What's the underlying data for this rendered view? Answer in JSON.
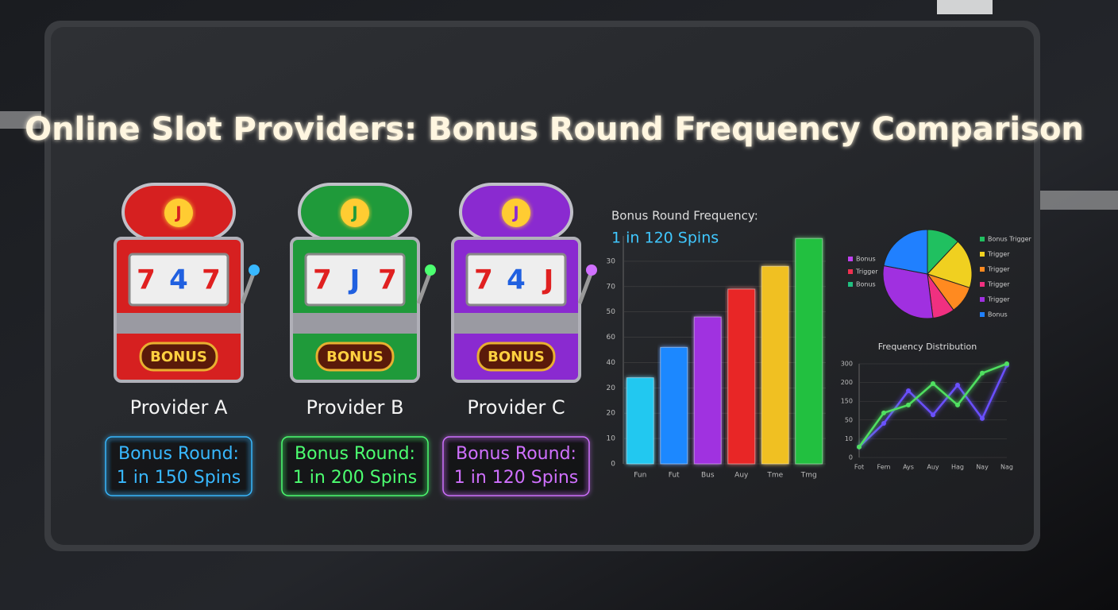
{
  "title": "Online Slot Providers: Bonus Round Frequency Comparison",
  "providers": [
    {
      "name": "Provider A",
      "color": "#d62020",
      "accent": "#38b8ff",
      "jackpot": "J",
      "reels": [
        "7",
        "4",
        "7"
      ],
      "badge": "BONUS",
      "bonus_line1": "Bonus Round:",
      "bonus_line2": "1 in 150 Spins"
    },
    {
      "name": "Provider B",
      "color": "#1f9a3a",
      "accent": "#4cff70",
      "jackpot": "J",
      "reels": [
        "7",
        "J",
        "7"
      ],
      "badge": "BONUS",
      "bonus_line1": "Bonus Round:",
      "bonus_line2": "1 in 200 Spins"
    },
    {
      "name": "Provider C",
      "color": "#8a2ad0",
      "accent": "#d070ff",
      "jackpot": "J",
      "reels": [
        "7",
        "4",
        "J"
      ],
      "badge": "BONUS",
      "bonus_line1": "Bonus Round:",
      "bonus_line2": "1 in 120 Spins"
    }
  ],
  "chart_data": [
    {
      "type": "bar",
      "title": "Bonus Round Frequency:",
      "subtitle": "1 in 120 Spins",
      "categories": [
        "Fun",
        "Fut",
        "Bus",
        "Auy",
        "Tme",
        "Tmg"
      ],
      "values": [
        34,
        46,
        58,
        69,
        78,
        89
      ],
      "colors": [
        "#22c8f0",
        "#1e88ff",
        "#a030e0",
        "#e82828",
        "#f0c020",
        "#20c040"
      ],
      "ylim": [
        0,
        90
      ],
      "yticks": [
        0,
        10,
        {
          "value": 20,
          "label": "20"
        },
        {
          "value": 30,
          "label": "20"
        },
        40,
        {
          "value": 50,
          "label": "60"
        },
        {
          "value": 60,
          "label": "50"
        },
        70,
        {
          "value": 80,
          "label": "30"
        }
      ]
    },
    {
      "type": "pie",
      "categories": [
        "Bonus Trigger",
        "Trigger",
        "Trigger",
        "Trigger",
        "Trigger",
        "Bonus"
      ],
      "values": [
        12,
        18,
        10,
        8,
        30,
        22
      ],
      "colors": [
        "#20c060",
        "#f0d020",
        "#ff8a20",
        "#f03080",
        "#a030e0",
        "#2080ff"
      ],
      "annotations": [
        {
          "text": "Bonus",
          "color": "#c040f0"
        },
        {
          "text": "Trigger",
          "color": "#f03050"
        },
        {
          "text": "Bonus",
          "color": "#20c080"
        }
      ]
    },
    {
      "type": "line",
      "title": "Frequency Distribution",
      "categories": [
        "Fot",
        "Fem",
        "Ays",
        "Auy",
        "Hag",
        "Nay",
        "Nag"
      ],
      "series": [
        {
          "color": "#6a50ff",
          "values": [
            28,
            91,
            178,
            114,
            193,
            104,
            246
          ]
        },
        {
          "color": "#50e060",
          "values": [
            28,
            119,
            140,
            197,
            140,
            225,
            250
          ]
        }
      ],
      "ylim": [
        0,
        250
      ],
      "yticks": [
        0,
        {
          "value": 50,
          "label": "10"
        },
        {
          "value": 100,
          "label": "50"
        },
        {
          "value": 150,
          "label": "150"
        },
        {
          "value": 200,
          "label": "200"
        },
        {
          "value": 250,
          "label": "300"
        }
      ]
    }
  ]
}
